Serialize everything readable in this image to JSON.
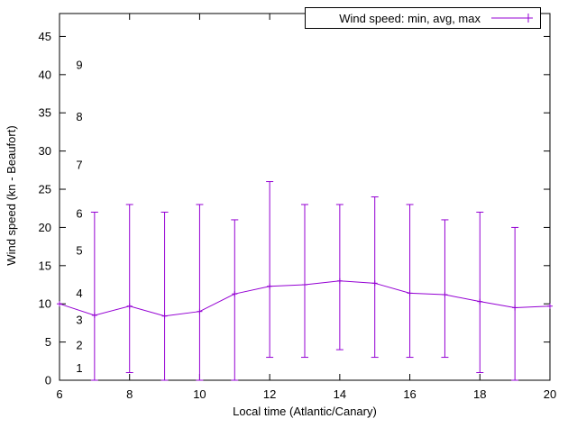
{
  "chart_data": {
    "type": "line",
    "title": "",
    "legend_label": "Wind speed: min, avg, max",
    "xlabel": "Local time (Atlantic/Canary)",
    "ylabel": "Wind speed (kn - Beaufort)",
    "xlim": [
      6,
      20
    ],
    "ylim": [
      0,
      48
    ],
    "xticks": [
      6,
      8,
      10,
      12,
      14,
      16,
      18,
      20
    ],
    "yticks": [
      0,
      5,
      10,
      15,
      20,
      25,
      30,
      35,
      40,
      45
    ],
    "grid": false,
    "legend_position": "top-right",
    "beaufort_scale": [
      {
        "label": "1",
        "kn": 1.6
      },
      {
        "label": "2",
        "kn": 4.6
      },
      {
        "label": "3",
        "kn": 7.9
      },
      {
        "label": "4",
        "kn": 11.4
      },
      {
        "label": "5",
        "kn": 17.0
      },
      {
        "label": "6",
        "kn": 21.8
      },
      {
        "label": "7",
        "kn": 28.2
      },
      {
        "label": "8",
        "kn": 34.5
      },
      {
        "label": "9",
        "kn": 41.3
      }
    ],
    "x": [
      6,
      7,
      8,
      9,
      10,
      11,
      12,
      13,
      14,
      15,
      16,
      17,
      18,
      19,
      20
    ],
    "avg": [
      10.0,
      8.5,
      9.7,
      8.4,
      9.0,
      11.3,
      12.3,
      12.5,
      13.0,
      12.7,
      11.4,
      11.2,
      10.3,
      9.5,
      9.7
    ],
    "min": [
      null,
      0,
      1,
      0,
      0,
      0,
      3,
      3,
      4,
      3,
      3,
      3,
      1,
      0,
      null
    ],
    "max": [
      null,
      22,
      23,
      22,
      23,
      21,
      26,
      23,
      23,
      24,
      23,
      21,
      22,
      20,
      null
    ],
    "colors": {
      "series": "#9400d3",
      "axis": "#000000",
      "background": "#ffffff"
    }
  }
}
